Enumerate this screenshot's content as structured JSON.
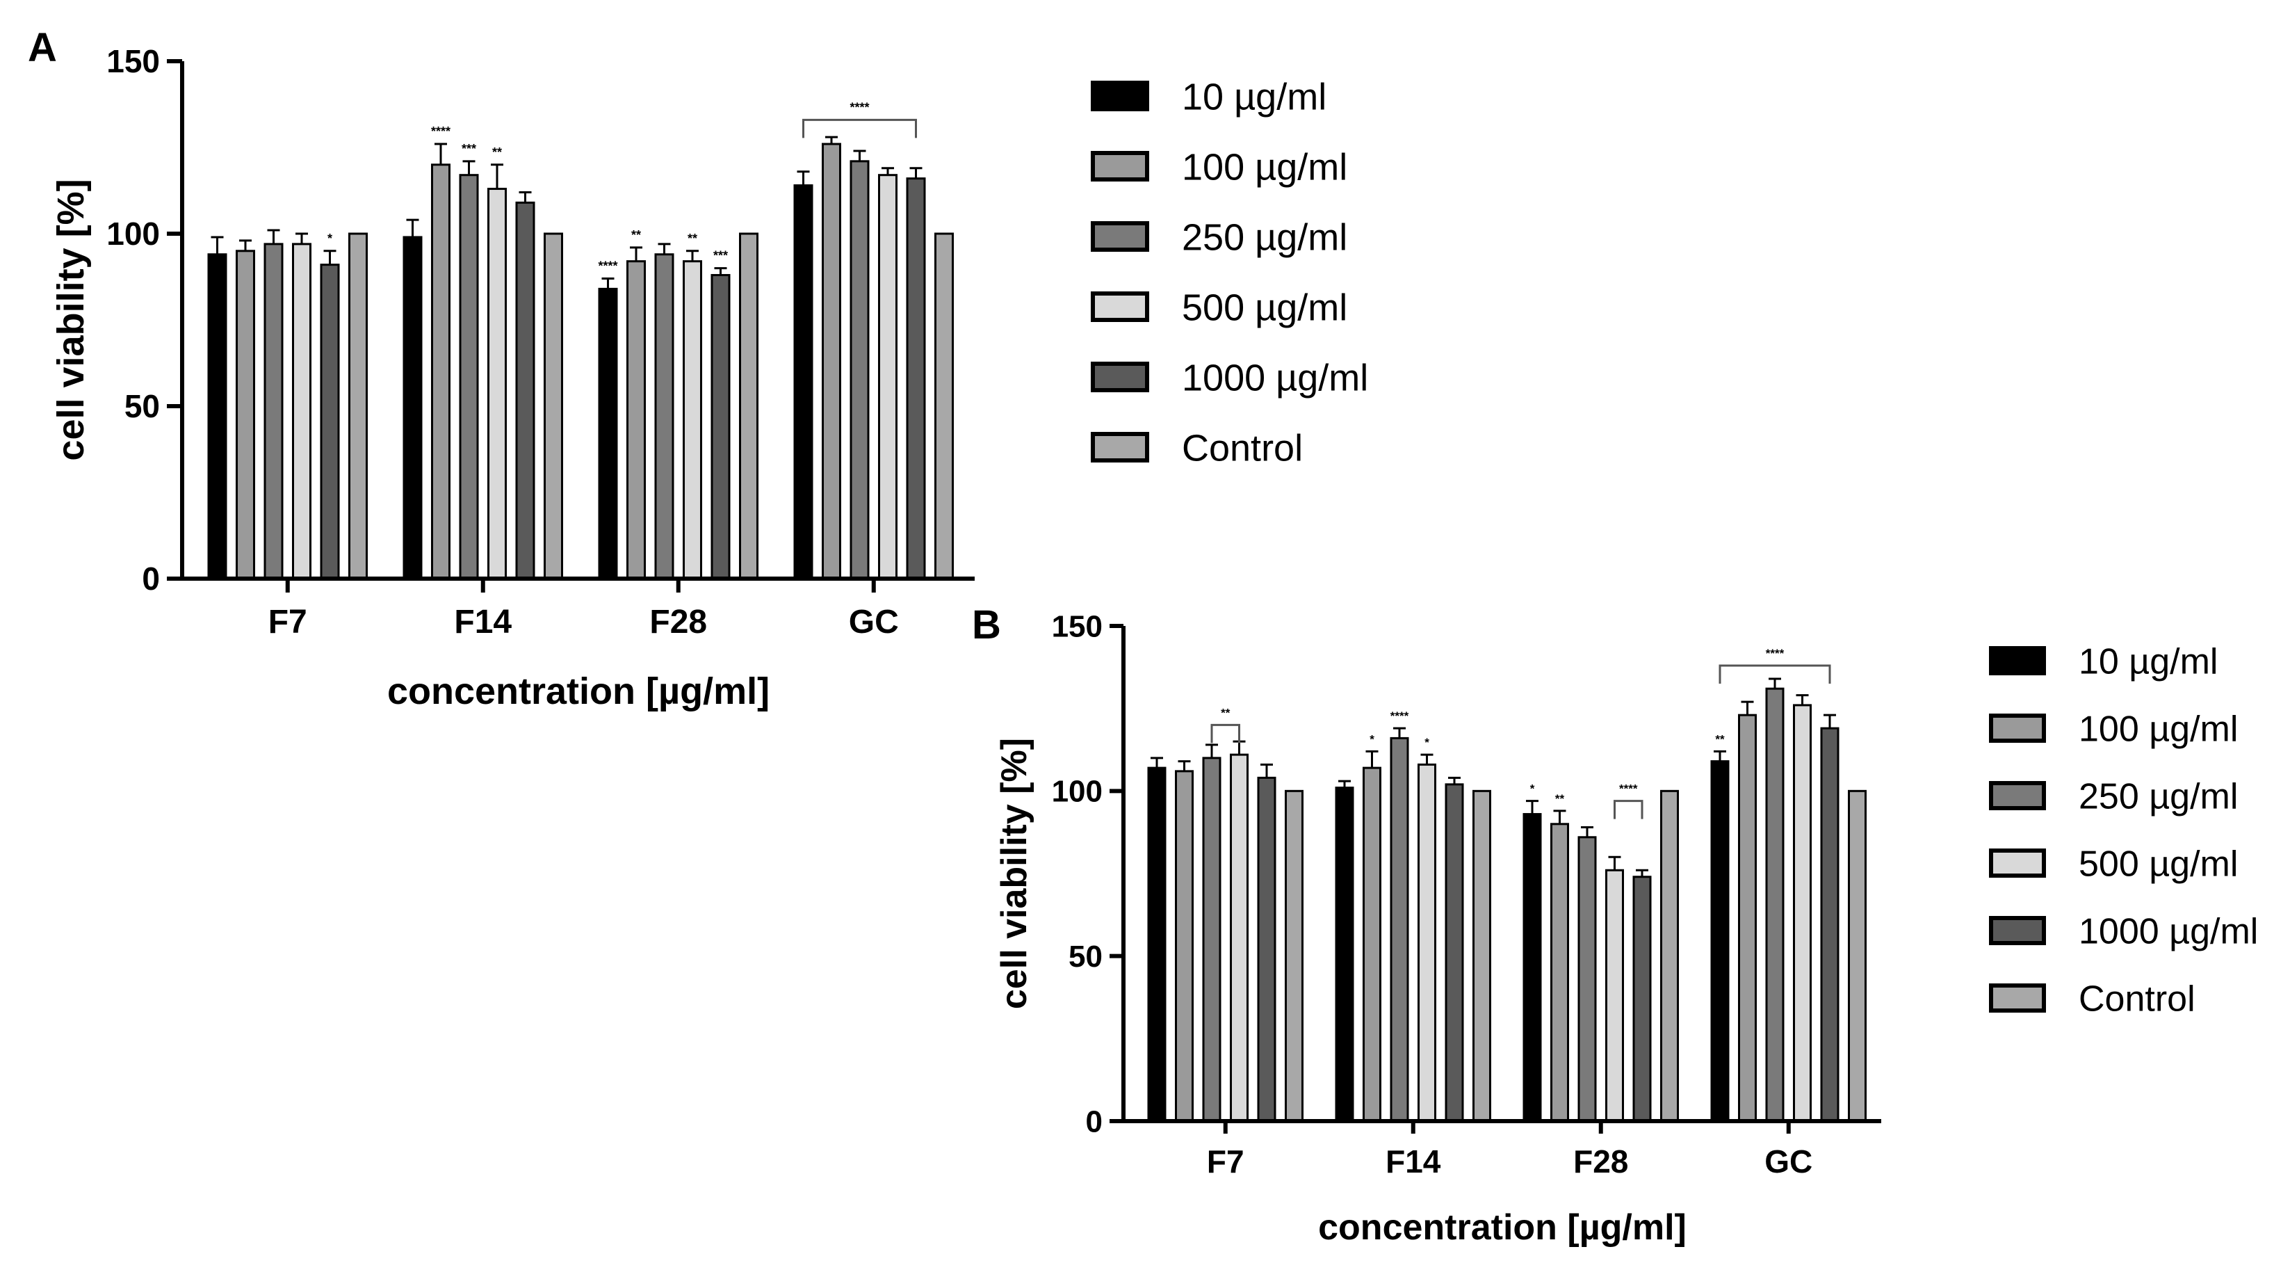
{
  "chart_data": [
    {
      "panel": "A",
      "type": "bar",
      "xlabel": "concentration [µg/ml]",
      "ylabel": "cell viability [%]",
      "ylim": [
        0,
        150
      ],
      "yticks": [
        "0",
        "50",
        "100",
        "150"
      ],
      "categories": [
        "F7",
        "F14",
        "F28",
        "GC"
      ],
      "series": [
        {
          "name": "10 µg/ml",
          "color": "#000000",
          "values": [
            94,
            99,
            84,
            114
          ],
          "errors": [
            5,
            5,
            3,
            4
          ]
        },
        {
          "name": "100 µg/ml",
          "color": "#9a9a9a",
          "values": [
            95,
            120,
            92,
            126
          ],
          "errors": [
            3,
            6,
            4,
            2
          ]
        },
        {
          "name": "250 µg/ml",
          "color": "#7a7a7a",
          "values": [
            97,
            117,
            94,
            121
          ],
          "errors": [
            4,
            4,
            3,
            3
          ]
        },
        {
          "name": "500 µg/ml",
          "color": "#d9d9d9",
          "values": [
            97,
            113,
            92,
            117
          ],
          "errors": [
            3,
            7,
            3,
            2
          ]
        },
        {
          "name": "1000 µg/ml",
          "color": "#5a5a5a",
          "values": [
            91,
            109,
            88,
            116
          ],
          "errors": [
            4,
            3,
            2,
            3
          ]
        },
        {
          "name": "Control",
          "color": "#a8a8a8",
          "values": [
            100,
            100,
            100,
            100
          ],
          "errors": [
            0,
            0,
            0,
            0
          ]
        }
      ],
      "significance": [
        {
          "group": 0,
          "bar": 4,
          "text": "*"
        },
        {
          "group": 1,
          "bar": 1,
          "text": "****"
        },
        {
          "group": 1,
          "bar": 2,
          "text": "***"
        },
        {
          "group": 1,
          "bar": 3,
          "text": "**"
        },
        {
          "group": 2,
          "bar": 0,
          "text": "****"
        },
        {
          "group": 2,
          "bar": 1,
          "text": "**"
        },
        {
          "group": 2,
          "bar": 3,
          "text": "**"
        },
        {
          "group": 2,
          "bar": 4,
          "text": "***"
        }
      ],
      "brackets": [
        {
          "group": 3,
          "from": 0,
          "to": 4,
          "level": 133,
          "text": "****"
        }
      ]
    },
    {
      "panel": "B",
      "type": "bar",
      "xlabel": "concentration [µg/ml]",
      "ylabel": "cell viability [%]",
      "ylim": [
        0,
        150
      ],
      "yticks": [
        "0",
        "50",
        "100",
        "150"
      ],
      "categories": [
        "F7",
        "F14",
        "F28",
        "GC"
      ],
      "series": [
        {
          "name": "10 µg/ml",
          "color": "#000000",
          "values": [
            107,
            101,
            93,
            109
          ],
          "errors": [
            3,
            2,
            4,
            3
          ]
        },
        {
          "name": "100 µg/ml",
          "color": "#9a9a9a",
          "values": [
            106,
            107,
            90,
            123
          ],
          "errors": [
            3,
            5,
            4,
            4
          ]
        },
        {
          "name": "250 µg/ml",
          "color": "#7a7a7a",
          "values": [
            110,
            116,
            86,
            131
          ],
          "errors": [
            4,
            3,
            3,
            3
          ]
        },
        {
          "name": "500 µg/ml",
          "color": "#d9d9d9",
          "values": [
            111,
            108,
            76,
            126
          ],
          "errors": [
            4,
            3,
            4,
            3
          ]
        },
        {
          "name": "1000 µg/ml",
          "color": "#5a5a5a",
          "values": [
            104,
            102,
            74,
            119
          ],
          "errors": [
            4,
            2,
            2,
            4
          ]
        },
        {
          "name": "Control",
          "color": "#a8a8a8",
          "values": [
            100,
            100,
            100,
            100
          ],
          "errors": [
            0,
            0,
            0,
            0
          ]
        }
      ],
      "significance": [
        {
          "group": 1,
          "bar": 1,
          "text": "*"
        },
        {
          "group": 1,
          "bar": 2,
          "text": "****"
        },
        {
          "group": 1,
          "bar": 3,
          "text": "*"
        },
        {
          "group": 2,
          "bar": 0,
          "text": "*"
        },
        {
          "group": 2,
          "bar": 1,
          "text": "**"
        },
        {
          "group": 3,
          "bar": 0,
          "text": "**"
        }
      ],
      "brackets": [
        {
          "group": 0,
          "from": 2,
          "to": 3,
          "level": 120,
          "text": "**"
        },
        {
          "group": 2,
          "from": 3,
          "to": 4,
          "level": 97,
          "text": "****"
        },
        {
          "group": 3,
          "from": 0,
          "to": 4,
          "level": 138,
          "text": "****"
        }
      ]
    }
  ]
}
